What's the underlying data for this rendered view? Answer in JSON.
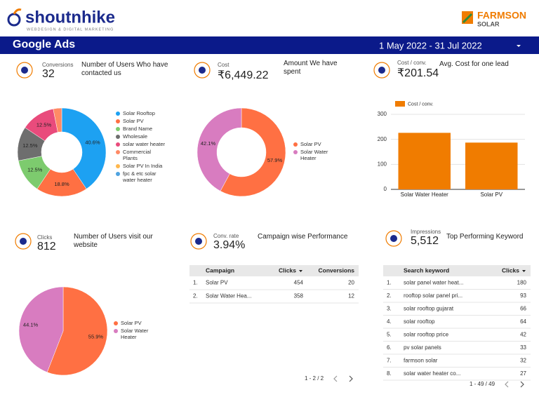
{
  "header": {
    "logo": "shoutnhike",
    "tagline": "WEBDESIGN & DIGITAL MARKETING",
    "brand": "FARMSON",
    "brand_sub": "SOLAR",
    "title": "Google Ads",
    "date_range": "1 May 2022 - 31 Jul 2022"
  },
  "kpis": [
    {
      "label": "Conversions",
      "value": "32",
      "caption": "Number of Users Who have contacted us"
    },
    {
      "label": "Cost",
      "value": "₹6,449.22",
      "caption": "Amount We have spent"
    },
    {
      "label": "Cost / conv.",
      "value": "₹201.54",
      "caption": "Avg. Cost for one lead"
    },
    {
      "label": "Clicks",
      "value": "812",
      "caption": "Number of Users visit our website"
    },
    {
      "label": "Conv. rate",
      "value": "3.94%",
      "caption": "Campaign wise Performance"
    },
    {
      "label": "Impressions",
      "value": "5,512",
      "caption": "Top Performing Keyword"
    }
  ],
  "chart_data": [
    {
      "type": "donut",
      "categories": [
        "Solar Rooftop",
        "Solar PV",
        "Brand Name",
        "Wholesale",
        "solar water heater",
        "Commercial Plants",
        "Solar PV In India",
        "fpc & etc solar water heater"
      ],
      "values": [
        40.6,
        18.8,
        12.5,
        12.5,
        12.5,
        3.1,
        0,
        0
      ],
      "value_labels": [
        "40.6%",
        "18.8%",
        "12.5%",
        "12.5%",
        "12.5%",
        null,
        null,
        null
      ],
      "colors": [
        "#1da1f2",
        "#ff7043",
        "#7dcb6e",
        "#6e6e6e",
        "#e94b7c",
        "#ff8a65",
        "#ffb74d",
        "#4fa3e0"
      ]
    },
    {
      "type": "donut",
      "categories": [
        "Solar PV",
        "Solar Water Heater"
      ],
      "values": [
        57.9,
        42.1
      ],
      "value_labels": [
        "57.9%",
        "42.1%"
      ],
      "colors": [
        "#ff7043",
        "#d87cc0"
      ]
    },
    {
      "type": "bar",
      "categories": [
        "Solar Water Heater",
        "Solar PV"
      ],
      "series": [
        {
          "name": "Cost / conv.",
          "color": "#f07c00",
          "values": [
            226,
            187
          ]
        }
      ],
      "ylim": [
        0,
        300
      ],
      "yticks": [
        0,
        100,
        200,
        300
      ],
      "grid": true
    },
    {
      "type": "pie",
      "categories": [
        "Solar PV",
        "Solar Water Heater"
      ],
      "values": [
        55.9,
        44.1
      ],
      "value_labels": [
        "55.9%",
        "44.1%"
      ],
      "colors": [
        "#ff7043",
        "#d87cc0"
      ]
    }
  ],
  "tables": [
    {
      "columns": [
        "Campaign",
        "Clicks",
        "Conversions"
      ],
      "rows": [
        [
          "1.",
          "Solar PV",
          454,
          20
        ],
        [
          "2.",
          "Solar Water Hea...",
          358,
          12
        ]
      ],
      "pagination": "1 - 2 / 2"
    },
    {
      "columns": [
        "Search keyword",
        "Clicks"
      ],
      "rows": [
        [
          "1.",
          "solar panel water heat...",
          180
        ],
        [
          "2.",
          "rooftop solar panel pri...",
          93
        ],
        [
          "3.",
          "solar rooftop gujarat",
          66
        ],
        [
          "4.",
          "solar rooftop",
          64
        ],
        [
          "5.",
          "solar rooftop price",
          42
        ],
        [
          "6.",
          "pv solar panels",
          33
        ],
        [
          "7.",
          "farmson solar",
          32
        ],
        [
          "8.",
          "solar water heater co...",
          27
        ]
      ],
      "pagination": "1 - 49 / 49"
    }
  ]
}
